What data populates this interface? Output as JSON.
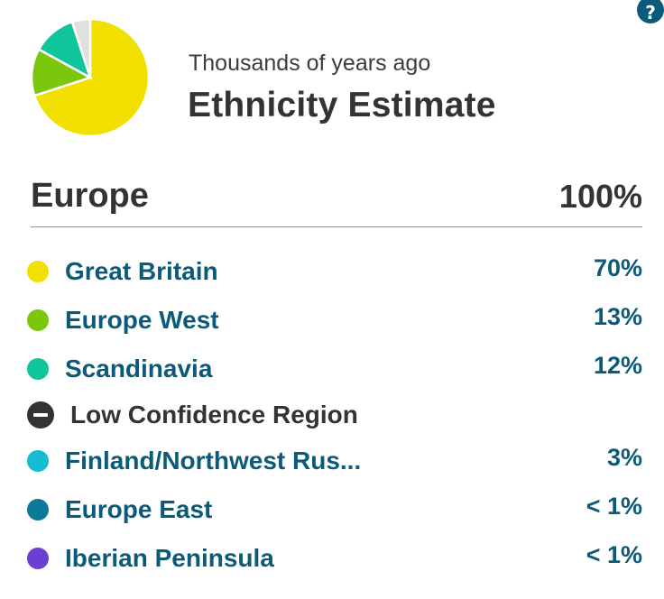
{
  "header": {
    "help_label": "?",
    "subtitle": "Thousands of years ago",
    "title": "Ethnicity Estimate"
  },
  "chart_data": {
    "type": "pie",
    "categories": [
      "Great Britain",
      "Europe West",
      "Scandinavia",
      "Other"
    ],
    "values": [
      70,
      13,
      12,
      5
    ],
    "colors": [
      "#f2e100",
      "#7ac70c",
      "#11c59b",
      "#e0e0dc"
    ]
  },
  "region": {
    "name": "Europe",
    "total": "100%",
    "items": [
      {
        "label": "Great Britain",
        "percent": "70%",
        "color": "#f2e100"
      },
      {
        "label": "Europe West",
        "percent": "13%",
        "color": "#7ac70c"
      },
      {
        "label": "Scandinavia",
        "percent": "12%",
        "color": "#11c59b"
      }
    ],
    "low_confidence_label": "Low Confidence Region",
    "low_items": [
      {
        "label": "Finland/Northwest Rus...",
        "percent": "3%",
        "color": "#15bcd3"
      },
      {
        "label": "Europe East",
        "percent": "< 1%",
        "color": "#0c7a97"
      },
      {
        "label": "Iberian Peninsula",
        "percent": "< 1%",
        "color": "#6b3fd0"
      }
    ]
  }
}
